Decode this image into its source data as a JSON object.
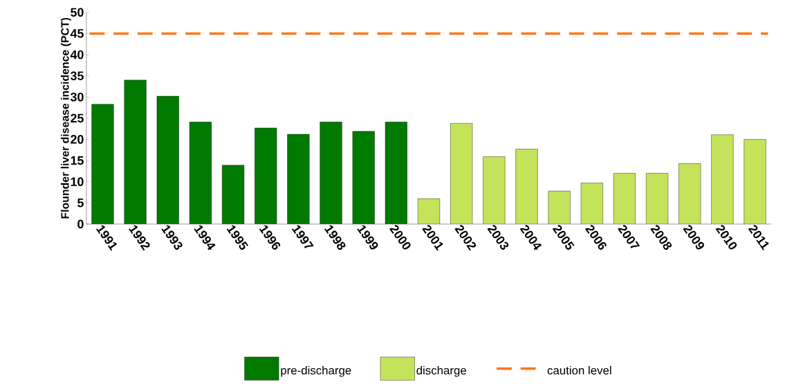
{
  "chart_data": {
    "type": "bar",
    "ylabel": "Flounder liver disease incidence (PCT)",
    "categories": [
      "1991",
      "1992",
      "1993",
      "1994",
      "1995",
      "1996",
      "1997",
      "1998",
      "1999",
      "2000",
      "2001",
      "2002",
      "2003",
      "2004",
      "2005",
      "2006",
      "2007",
      "2008",
      "2009",
      "2010",
      "2011"
    ],
    "series": [
      {
        "name": "pre-discharge",
        "color": "#007a00",
        "values": [
          28.3,
          34,
          30.2,
          24.1,
          13.9,
          22.7,
          21.2,
          24.1,
          21.9,
          24.1,
          null,
          null,
          null,
          null,
          null,
          null,
          null,
          null,
          null,
          null,
          null
        ]
      },
      {
        "name": "discharge",
        "color": "#c4e35a",
        "values": [
          null,
          null,
          null,
          null,
          null,
          null,
          null,
          null,
          null,
          null,
          6,
          23.8,
          15.9,
          17.7,
          7.8,
          9.7,
          12,
          12,
          14.3,
          21.1,
          20
        ]
      }
    ],
    "ylim": [
      0,
      50
    ],
    "yticks": [
      0,
      5,
      10,
      15,
      20,
      25,
      30,
      35,
      40,
      45,
      50
    ],
    "ref_lines": [
      {
        "axis": "y",
        "value": 45,
        "label": "caution level",
        "color": "#ff7518",
        "line_style": "dashed"
      }
    ],
    "grid": false,
    "legend": "bottom"
  }
}
